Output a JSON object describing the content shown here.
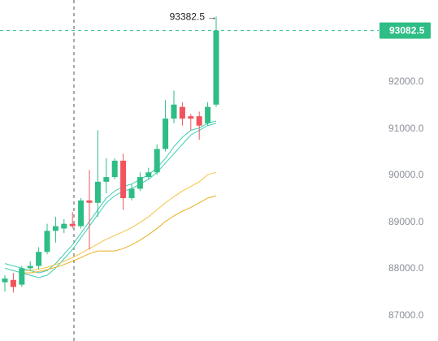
{
  "chart_data": {
    "type": "candlestick",
    "y_ticks": [
      87000.0,
      88000.0,
      89000.0,
      90000.0,
      91000.0,
      92000.0
    ],
    "y_tick_labels": [
      "87000.0",
      "88000.0",
      "89000.0",
      "90000.0",
      "91000.0",
      "92000.0"
    ],
    "last_price": 93082.5,
    "last_price_label": "93082.5",
    "high_marker": 93382.5,
    "high_marker_label": "93382.5",
    "grid": false,
    "colors": {
      "up": "#2ebd85",
      "down": "#f0545c",
      "ma_fast_1": "#3ccfb4",
      "ma_fast_2": "#3ccfb4",
      "ma_slow_1": "#f5c242",
      "ma_slow_2": "#e6b020",
      "crosshair": "#555555",
      "last_line": "#2ebd85",
      "axis_text": "#8a8f99"
    },
    "candles": [
      {
        "o": 87700,
        "h": 87850,
        "l": 87500,
        "c": 87780
      },
      {
        "o": 87750,
        "h": 87900,
        "l": 87480,
        "c": 87600
      },
      {
        "o": 87650,
        "h": 88050,
        "l": 87600,
        "c": 88000
      },
      {
        "o": 88000,
        "h": 88150,
        "l": 87950,
        "c": 88050
      },
      {
        "o": 88050,
        "h": 88450,
        "l": 87980,
        "c": 88350
      },
      {
        "o": 88350,
        "h": 88950,
        "l": 88300,
        "c": 88800
      },
      {
        "o": 88800,
        "h": 89100,
        "l": 88550,
        "c": 88900
      },
      {
        "o": 88850,
        "h": 89050,
        "l": 88750,
        "c": 88950
      },
      {
        "o": 88950,
        "h": 89200,
        "l": 88850,
        "c": 88900
      },
      {
        "o": 88900,
        "h": 89500,
        "l": 88850,
        "c": 89450
      },
      {
        "o": 89450,
        "h": 90100,
        "l": 88400,
        "c": 89400
      },
      {
        "o": 89400,
        "h": 90950,
        "l": 89100,
        "c": 89850
      },
      {
        "o": 89850,
        "h": 90350,
        "l": 89600,
        "c": 89950
      },
      {
        "o": 89950,
        "h": 90350,
        "l": 89900,
        "c": 90300
      },
      {
        "o": 90300,
        "h": 90450,
        "l": 89250,
        "c": 89500
      },
      {
        "o": 89500,
        "h": 89800,
        "l": 89450,
        "c": 89700
      },
      {
        "o": 89700,
        "h": 90050,
        "l": 89650,
        "c": 89950
      },
      {
        "o": 89950,
        "h": 90150,
        "l": 89900,
        "c": 90050
      },
      {
        "o": 90050,
        "h": 90650,
        "l": 90000,
        "c": 90550
      },
      {
        "o": 90550,
        "h": 91600,
        "l": 90500,
        "c": 91200
      },
      {
        "o": 91200,
        "h": 91800,
        "l": 91100,
        "c": 91500
      },
      {
        "o": 91450,
        "h": 91550,
        "l": 91050,
        "c": 91200
      },
      {
        "o": 91250,
        "h": 91300,
        "l": 90950,
        "c": 91200
      },
      {
        "o": 91250,
        "h": 91350,
        "l": 90750,
        "c": 91050
      },
      {
        "o": 91100,
        "h": 91550,
        "l": 91050,
        "c": 91450
      },
      {
        "o": 91500,
        "h": 93382.5,
        "l": 91450,
        "c": 93082.5
      }
    ],
    "ma_fast_1": [
      88100,
      88050,
      88000,
      87950,
      87900,
      87950,
      88100,
      88300,
      88500,
      88750,
      89000,
      89250,
      89500,
      89650,
      89750,
      89800,
      89900,
      90000,
      90150,
      90350,
      90600,
      90800,
      90950,
      91000,
      91100,
      91150
    ],
    "ma_fast_2": [
      88000,
      87950,
      87900,
      87850,
      87800,
      87850,
      88000,
      88200,
      88400,
      88650,
      88900,
      89150,
      89400,
      89550,
      89650,
      89700,
      89800,
      89900,
      90050,
      90250,
      90450,
      90650,
      90850,
      90950,
      91050,
      91100
    ],
    "ma_slow_1": [
      null,
      null,
      87950,
      87950,
      87980,
      88020,
      88080,
      88150,
      88230,
      88320,
      88420,
      88520,
      88620,
      88700,
      88780,
      88870,
      88980,
      89100,
      89250,
      89400,
      89530,
      89650,
      89750,
      89850,
      90000,
      90050
    ],
    "ma_slow_2": [
      null,
      null,
      87900,
      87900,
      87930,
      87970,
      88020,
      88080,
      88150,
      88230,
      88310,
      88370,
      88370,
      88370,
      88420,
      88500,
      88600,
      88720,
      88850,
      89000,
      89120,
      89220,
      89300,
      89400,
      89500,
      89550
    ]
  }
}
